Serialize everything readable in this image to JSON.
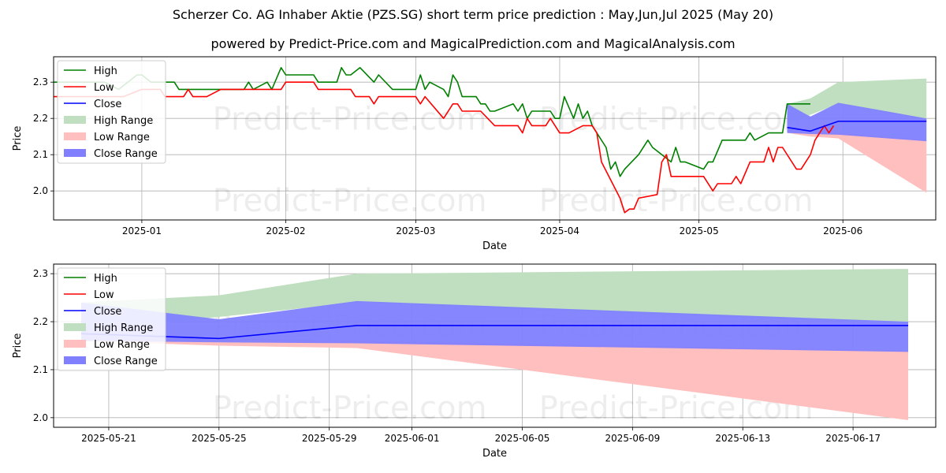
{
  "header": {
    "title": "Scherzer Co. AG Inhaber Aktie (PZS.SG) short term price prediction : May,Jun,Jul 2025 (May 20)",
    "subtitle": "powered by Predict-Price.com and MagicalPrediction.com and MagicalAnalysis.com"
  },
  "watermark": "Predict-Price.com",
  "colors": {
    "high": "#008000",
    "low": "#ff0000",
    "close": "#0000ff",
    "high_range": "#c0dfc0",
    "low_range": "#ffbfbf",
    "close_range": "#7f7fff"
  },
  "legend": {
    "placement": "top-left",
    "items": [
      "High",
      "Low",
      "Close",
      "High Range",
      "Low Range",
      "Close Range"
    ]
  },
  "chart_data": [
    {
      "type": "line",
      "xlabel": "Date",
      "ylabel": "Price",
      "x_type": "date",
      "xlim": [
        "2024-12-13",
        "2025-06-21"
      ],
      "ylim": [
        1.92,
        2.37
      ],
      "grid": true,
      "x_ticks": [
        {
          "date": "2025-01-01",
          "label": "2025-01"
        },
        {
          "date": "2025-02-01",
          "label": "2025-02"
        },
        {
          "date": "2025-03-01",
          "label": "2025-03"
        },
        {
          "date": "2025-04-01",
          "label": "2025-04"
        },
        {
          "date": "2025-05-01",
          "label": "2025-05"
        },
        {
          "date": "2025-06-01",
          "label": "2025-06"
        }
      ],
      "y_ticks": [
        2.0,
        2.1,
        2.2,
        2.3
      ],
      "series": [
        {
          "name": "High",
          "role": "high",
          "points": [
            [
              "2024-12-13",
              2.3
            ],
            [
              "2024-12-24",
              2.3
            ],
            [
              "2024-12-27",
              2.28
            ],
            [
              "2024-12-31",
              2.32
            ],
            [
              "2025-01-01",
              2.32
            ],
            [
              "2025-01-03",
              2.3
            ],
            [
              "2025-01-08",
              2.3
            ],
            [
              "2025-01-09",
              2.28
            ],
            [
              "2025-01-20",
              2.28
            ],
            [
              "2025-01-23",
              2.28
            ],
            [
              "2025-01-24",
              2.3
            ],
            [
              "2025-01-25",
              2.28
            ],
            [
              "2025-01-28",
              2.3
            ],
            [
              "2025-01-29",
              2.28
            ],
            [
              "2025-01-31",
              2.34
            ],
            [
              "2025-02-01",
              2.32
            ],
            [
              "2025-02-07",
              2.32
            ],
            [
              "2025-02-08",
              2.3
            ],
            [
              "2025-02-12",
              2.3
            ],
            [
              "2025-02-13",
              2.34
            ],
            [
              "2025-02-14",
              2.32
            ],
            [
              "2025-02-15",
              2.32
            ],
            [
              "2025-02-17",
              2.34
            ],
            [
              "2025-02-20",
              2.3
            ],
            [
              "2025-02-21",
              2.32
            ],
            [
              "2025-02-24",
              2.28
            ],
            [
              "2025-03-01",
              2.28
            ],
            [
              "2025-03-02",
              2.32
            ],
            [
              "2025-03-03",
              2.28
            ],
            [
              "2025-03-04",
              2.3
            ],
            [
              "2025-03-07",
              2.28
            ],
            [
              "2025-03-08",
              2.26
            ],
            [
              "2025-03-09",
              2.32
            ],
            [
              "2025-03-10",
              2.3
            ],
            [
              "2025-03-11",
              2.26
            ],
            [
              "2025-03-14",
              2.26
            ],
            [
              "2025-03-15",
              2.24
            ],
            [
              "2025-03-16",
              2.24
            ],
            [
              "2025-03-17",
              2.22
            ],
            [
              "2025-03-18",
              2.22
            ],
            [
              "2025-03-22",
              2.24
            ],
            [
              "2025-03-23",
              2.22
            ],
            [
              "2025-03-24",
              2.24
            ],
            [
              "2025-03-25",
              2.2
            ],
            [
              "2025-03-26",
              2.22
            ],
            [
              "2025-03-30",
              2.22
            ],
            [
              "2025-03-31",
              2.2
            ],
            [
              "2025-04-01",
              2.2
            ],
            [
              "2025-04-02",
              2.26
            ],
            [
              "2025-04-04",
              2.2
            ],
            [
              "2025-04-05",
              2.24
            ],
            [
              "2025-04-06",
              2.2
            ],
            [
              "2025-04-07",
              2.22
            ],
            [
              "2025-04-08",
              2.18
            ],
            [
              "2025-04-11",
              2.12
            ],
            [
              "2025-04-12",
              2.06
            ],
            [
              "2025-04-13",
              2.08
            ],
            [
              "2025-04-14",
              2.04
            ],
            [
              "2025-04-15",
              2.06
            ],
            [
              "2025-04-18",
              2.1
            ],
            [
              "2025-04-20",
              2.14
            ],
            [
              "2025-04-21",
              2.12
            ],
            [
              "2025-04-25",
              2.08
            ],
            [
              "2025-04-26",
              2.12
            ],
            [
              "2025-04-27",
              2.08
            ],
            [
              "2025-04-28",
              2.08
            ],
            [
              "2025-05-02",
              2.06
            ],
            [
              "2025-05-03",
              2.08
            ],
            [
              "2025-05-04",
              2.08
            ],
            [
              "2025-05-06",
              2.14
            ],
            [
              "2025-05-11",
              2.14
            ],
            [
              "2025-05-12",
              2.16
            ],
            [
              "2025-05-13",
              2.14
            ],
            [
              "2025-05-16",
              2.16
            ],
            [
              "2025-05-19",
              2.16
            ],
            [
              "2025-05-20",
              2.24
            ],
            [
              "2025-05-25",
              2.24
            ]
          ]
        },
        {
          "name": "Low",
          "role": "low",
          "points": [
            [
              "2024-12-13",
              2.26
            ],
            [
              "2024-12-28",
              2.26
            ],
            [
              "2025-01-01",
              2.28
            ],
            [
              "2025-01-05",
              2.28
            ],
            [
              "2025-01-06",
              2.26
            ],
            [
              "2025-01-10",
              2.26
            ],
            [
              "2025-01-11",
              2.28
            ],
            [
              "2025-01-12",
              2.26
            ],
            [
              "2025-01-15",
              2.26
            ],
            [
              "2025-01-18",
              2.28
            ],
            [
              "2025-01-30",
              2.28
            ],
            [
              "2025-01-31",
              2.28
            ],
            [
              "2025-02-01",
              2.3
            ],
            [
              "2025-02-07",
              2.3
            ],
            [
              "2025-02-08",
              2.28
            ],
            [
              "2025-02-15",
              2.28
            ],
            [
              "2025-02-16",
              2.26
            ],
            [
              "2025-02-19",
              2.26
            ],
            [
              "2025-02-20",
              2.24
            ],
            [
              "2025-02-21",
              2.26
            ],
            [
              "2025-03-01",
              2.26
            ],
            [
              "2025-03-02",
              2.24
            ],
            [
              "2025-03-03",
              2.26
            ],
            [
              "2025-03-07",
              2.2
            ],
            [
              "2025-03-09",
              2.24
            ],
            [
              "2025-03-10",
              2.24
            ],
            [
              "2025-03-11",
              2.22
            ],
            [
              "2025-03-15",
              2.22
            ],
            [
              "2025-03-18",
              2.18
            ],
            [
              "2025-03-23",
              2.18
            ],
            [
              "2025-03-24",
              2.16
            ],
            [
              "2025-03-25",
              2.2
            ],
            [
              "2025-03-26",
              2.18
            ],
            [
              "2025-03-29",
              2.18
            ],
            [
              "2025-03-30",
              2.2
            ],
            [
              "2025-04-01",
              2.16
            ],
            [
              "2025-04-03",
              2.16
            ],
            [
              "2025-04-06",
              2.18
            ],
            [
              "2025-04-08",
              2.18
            ],
            [
              "2025-04-09",
              2.16
            ],
            [
              "2025-04-10",
              2.08
            ],
            [
              "2025-04-14",
              1.98
            ],
            [
              "2025-04-15",
              1.94
            ],
            [
              "2025-04-16",
              1.95
            ],
            [
              "2025-04-17",
              1.95
            ],
            [
              "2025-04-18",
              1.98
            ],
            [
              "2025-04-22",
              1.99
            ],
            [
              "2025-04-23",
              2.08
            ],
            [
              "2025-04-24",
              2.1
            ],
            [
              "2025-04-25",
              2.04
            ],
            [
              "2025-04-30",
              2.04
            ],
            [
              "2025-05-02",
              2.04
            ],
            [
              "2025-05-04",
              2.0
            ],
            [
              "2025-05-05",
              2.02
            ],
            [
              "2025-05-08",
              2.02
            ],
            [
              "2025-05-09",
              2.04
            ],
            [
              "2025-05-10",
              2.02
            ],
            [
              "2025-05-12",
              2.08
            ],
            [
              "2025-05-15",
              2.08
            ],
            [
              "2025-05-16",
              2.12
            ],
            [
              "2025-05-17",
              2.08
            ],
            [
              "2025-05-18",
              2.12
            ],
            [
              "2025-05-19",
              2.12
            ],
            [
              "2025-05-22",
              2.06
            ],
            [
              "2025-05-23",
              2.06
            ],
            [
              "2025-05-25",
              2.1
            ],
            [
              "2025-05-26",
              2.14
            ],
            [
              "2025-05-27",
              2.16
            ],
            [
              "2025-05-28",
              2.18
            ],
            [
              "2025-05-29",
              2.16
            ],
            [
              "2025-05-30",
              2.18
            ]
          ]
        },
        {
          "name": "Close",
          "role": "close",
          "points": [
            [
              "2025-05-20",
              2.175
            ],
            [
              "2025-05-25",
              2.165
            ],
            [
              "2025-05-31",
              2.192
            ],
            [
              "2025-06-19",
              2.192
            ]
          ]
        }
      ],
      "ranges": [
        {
          "name": "High Range",
          "role": "high_range",
          "upper": [
            [
              "2025-05-20",
              2.24
            ],
            [
              "2025-05-25",
              2.255
            ],
            [
              "2025-05-31",
              2.3
            ],
            [
              "2025-06-19",
              2.31
            ]
          ],
          "lower": [
            [
              "2025-05-20",
              2.18
            ],
            [
              "2025-05-25",
              2.21
            ],
            [
              "2025-05-31",
              2.24
            ],
            [
              "2025-06-19",
              2.195
            ]
          ]
        },
        {
          "name": "Low Range",
          "role": "low_range",
          "upper": [
            [
              "2025-05-20",
              2.18
            ],
            [
              "2025-05-25",
              2.165
            ],
            [
              "2025-05-31",
              2.16
            ],
            [
              "2025-06-19",
              2.14
            ]
          ],
          "lower": [
            [
              "2025-05-20",
              2.16
            ],
            [
              "2025-05-25",
              2.15
            ],
            [
              "2025-05-31",
              2.145
            ],
            [
              "2025-06-19",
              1.995
            ]
          ]
        },
        {
          "name": "Close Range",
          "role": "close_range",
          "upper": [
            [
              "2025-05-20",
              2.24
            ],
            [
              "2025-05-25",
              2.205
            ],
            [
              "2025-05-31",
              2.243
            ],
            [
              "2025-06-19",
              2.2
            ]
          ],
          "lower": [
            [
              "2025-05-20",
              2.16
            ],
            [
              "2025-05-25",
              2.157
            ],
            [
              "2025-05-31",
              2.155
            ],
            [
              "2025-06-19",
              2.137
            ]
          ]
        }
      ]
    },
    {
      "type": "line",
      "xlabel": "Date",
      "ylabel": "Price",
      "x_type": "date",
      "xlim": [
        "2025-05-19",
        "2025-06-20"
      ],
      "ylim": [
        1.98,
        2.32
      ],
      "grid": true,
      "x_ticks": [
        {
          "date": "2025-05-21",
          "label": "2025-05-21"
        },
        {
          "date": "2025-05-25",
          "label": "2025-05-25"
        },
        {
          "date": "2025-05-29",
          "label": "2025-05-29"
        },
        {
          "date": "2025-06-01",
          "label": "2025-06-01"
        },
        {
          "date": "2025-06-05",
          "label": "2025-06-05"
        },
        {
          "date": "2025-06-09",
          "label": "2025-06-09"
        },
        {
          "date": "2025-06-13",
          "label": "2025-06-13"
        },
        {
          "date": "2025-06-17",
          "label": "2025-06-17"
        }
      ],
      "y_ticks": [
        2.0,
        2.1,
        2.2,
        2.3
      ],
      "series": [
        {
          "name": "Close",
          "role": "close",
          "points": [
            [
              "2025-05-20",
              2.175
            ],
            [
              "2025-05-25",
              2.165
            ],
            [
              "2025-05-30",
              2.192
            ],
            [
              "2025-06-19",
              2.192
            ]
          ]
        }
      ],
      "ranges": [
        {
          "name": "High Range",
          "role": "high_range",
          "upper": [
            [
              "2025-05-20",
              2.24
            ],
            [
              "2025-05-25",
              2.255
            ],
            [
              "2025-05-30",
              2.3
            ],
            [
              "2025-06-19",
              2.31
            ]
          ],
          "lower": [
            [
              "2025-05-20",
              2.18
            ],
            [
              "2025-05-25",
              2.21
            ],
            [
              "2025-05-30",
              2.24
            ],
            [
              "2025-06-19",
              2.195
            ]
          ]
        },
        {
          "name": "Low Range",
          "role": "low_range",
          "upper": [
            [
              "2025-05-20",
              2.18
            ],
            [
              "2025-05-25",
              2.165
            ],
            [
              "2025-05-30",
              2.16
            ],
            [
              "2025-06-19",
              2.14
            ]
          ],
          "lower": [
            [
              "2025-05-20",
              2.16
            ],
            [
              "2025-05-25",
              2.15
            ],
            [
              "2025-05-30",
              2.145
            ],
            [
              "2025-06-19",
              1.995
            ]
          ]
        },
        {
          "name": "Close Range",
          "role": "close_range",
          "upper": [
            [
              "2025-05-20",
              2.24
            ],
            [
              "2025-05-25",
              2.205
            ],
            [
              "2025-05-30",
              2.243
            ],
            [
              "2025-06-19",
              2.2
            ]
          ],
          "lower": [
            [
              "2025-05-20",
              2.16
            ],
            [
              "2025-05-25",
              2.157
            ],
            [
              "2025-05-30",
              2.155
            ],
            [
              "2025-06-19",
              2.137
            ]
          ]
        }
      ]
    }
  ]
}
